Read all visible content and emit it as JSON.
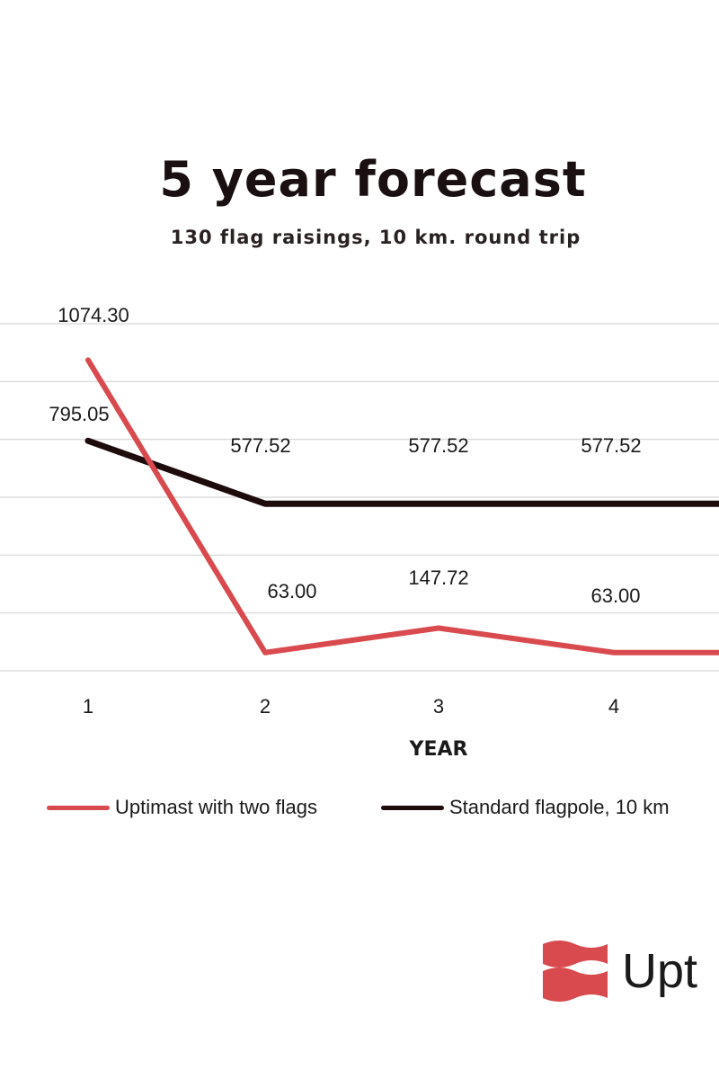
{
  "title": "5 year forecast",
  "subtitle": "130 flag raisings, 10 km. round trip",
  "chart_data": {
    "type": "line",
    "title": "5 year forecast",
    "subtitle": "130 flag raisings, 10 km. round trip",
    "xlabel": "YEAR",
    "ylabel": "",
    "categories": [
      "1",
      "2",
      "3",
      "4"
    ],
    "ylim": [
      0,
      1200
    ],
    "grid": true,
    "legend_position": "bottom",
    "series": [
      {
        "name": "Uptimast with two flags",
        "color": "#d94a4f",
        "values": [
          1074.3,
          63.0,
          147.72,
          63.0
        ],
        "labels": [
          "1074.30",
          "63.00",
          "147.72",
          "63.00"
        ]
      },
      {
        "name": "Standard flagpole, 10 km",
        "color": "#1e0c0c",
        "values": [
          795.05,
          577.52,
          577.52,
          577.52
        ],
        "labels": [
          "795.05",
          "577.52",
          "577.52",
          "577.52"
        ]
      }
    ]
  },
  "brand": {
    "text": "Upt",
    "color": "#d94a4f"
  }
}
